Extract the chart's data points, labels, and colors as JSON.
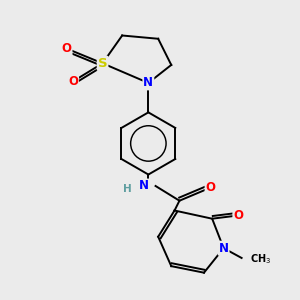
{
  "bg_color": "#ebebeb",
  "colors": {
    "N": "#0000ff",
    "O": "#ff0000",
    "S": "#cccc00",
    "C": "#000000",
    "H": "#5f9ea0"
  },
  "font_size": 8.5,
  "lw": 1.4
}
